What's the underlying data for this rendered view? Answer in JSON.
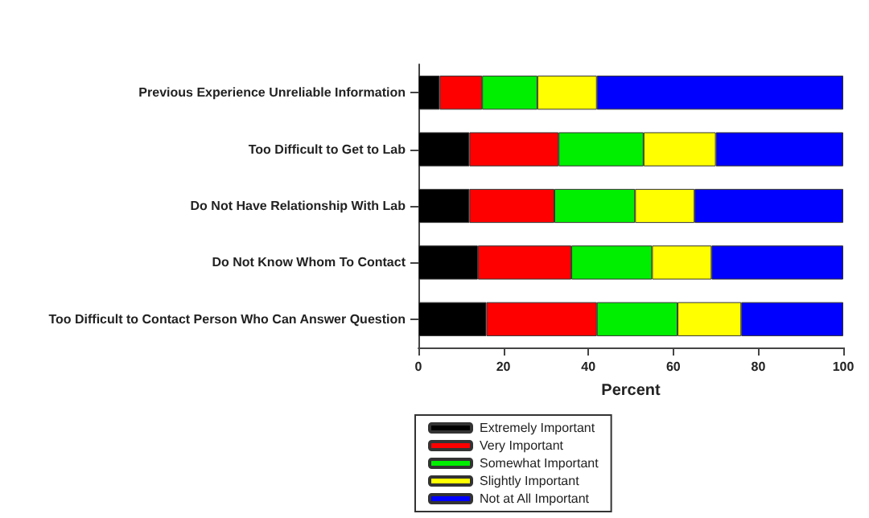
{
  "chart_data": {
    "type": "bar",
    "orientation": "horizontal",
    "stacked": true,
    "xlabel": "Percent",
    "categories": [
      "Previous Experience Unreliable Information",
      "Too Difficult to Get to Lab",
      "Do Not Have Relationship With Lab",
      "Do Not Know Whom To Contact",
      "Too Difficult to Contact Person Who Can Answer Question"
    ],
    "series": [
      {
        "name": "Extremely Important",
        "color": "#000000",
        "values": [
          5,
          12,
          12,
          14,
          16
        ]
      },
      {
        "name": "Very Important",
        "color": "#ff0000",
        "values": [
          10,
          21,
          20,
          22,
          26
        ]
      },
      {
        "name": "Somewhat Important",
        "color": "#00ee00",
        "values": [
          13,
          20,
          19,
          19,
          19
        ]
      },
      {
        "name": "Slightly Important",
        "color": "#ffff00",
        "values": [
          14,
          17,
          14,
          14,
          15
        ]
      },
      {
        "name": "Not at All Important",
        "color": "#0000ff",
        "values": [
          58,
          30,
          35,
          31,
          24
        ]
      }
    ],
    "xlim": [
      0,
      100
    ],
    "xticks": [
      0,
      20,
      40,
      60,
      80,
      100
    ],
    "grid": false,
    "legend": "bottom"
  }
}
